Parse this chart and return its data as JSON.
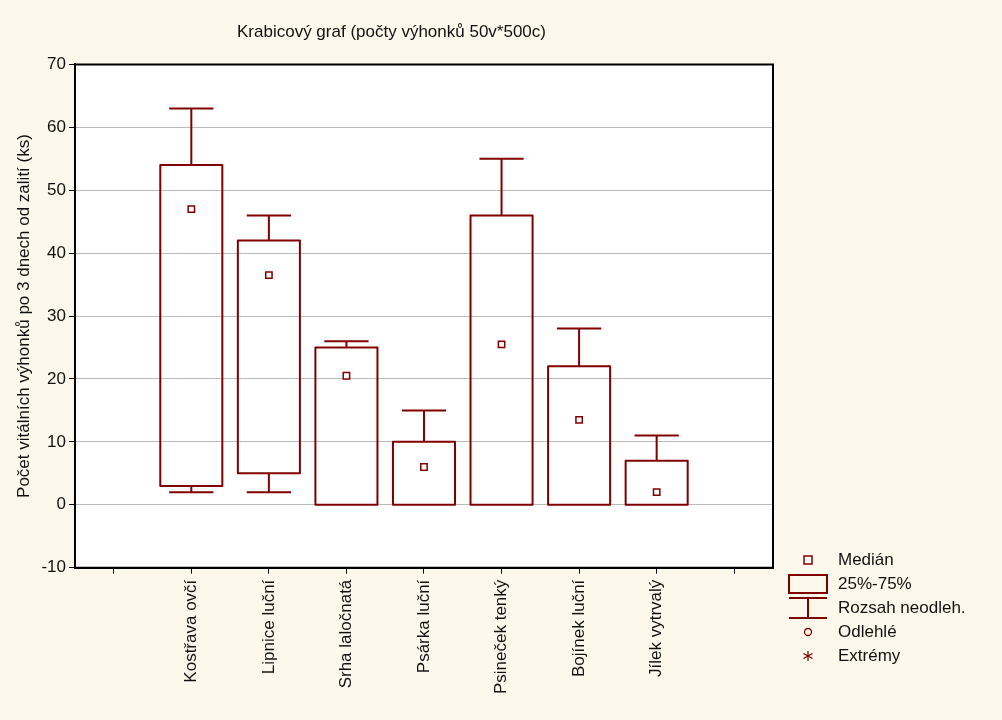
{
  "chart_data": {
    "type": "box",
    "title": "Krabicový graf (počty výhonků 50v*500c)",
    "ylabel": "Počet vitálních výhonků po 3 dnech od zalití (ks)",
    "categories": [
      null,
      "Kostřava ovčí",
      "Lipnice luční",
      "Srha laločnatá",
      "Psárka luční",
      "Psineček tenký",
      "Bojínek luční",
      "Jílek vytrvalý",
      null
    ],
    "series": [
      {
        "color": "#800000",
        "boxes": [
          null,
          {
            "low": 2,
            "q1": 3,
            "median": 47,
            "q3": 54,
            "high": 63
          },
          {
            "low": 2,
            "q1": 5,
            "median": 36.5,
            "q3": 42,
            "high": 46
          },
          {
            "low": 0,
            "q1": 0,
            "median": 20.5,
            "q3": 25,
            "high": 26
          },
          {
            "low": 0,
            "q1": 0,
            "median": 6,
            "q3": 10,
            "high": 15
          },
          {
            "low": 0,
            "q1": 0,
            "median": 25.5,
            "q3": 46,
            "high": 55
          },
          {
            "low": 0,
            "q1": 0,
            "median": 13.5,
            "q3": 22,
            "high": 28
          },
          {
            "low": 0,
            "q1": 0,
            "median": 2,
            "q3": 7,
            "high": 11
          },
          null
        ]
      }
    ],
    "ylim": [
      -10,
      70
    ],
    "yticks": [
      -10,
      0,
      10,
      20,
      30,
      40,
      50,
      60,
      70
    ],
    "grid": "y",
    "marker": "square",
    "annotations": [
      "Medián",
      "25%-75%",
      "Rozsah neodleh.",
      "Odlehlé",
      "Extrémy"
    ]
  }
}
